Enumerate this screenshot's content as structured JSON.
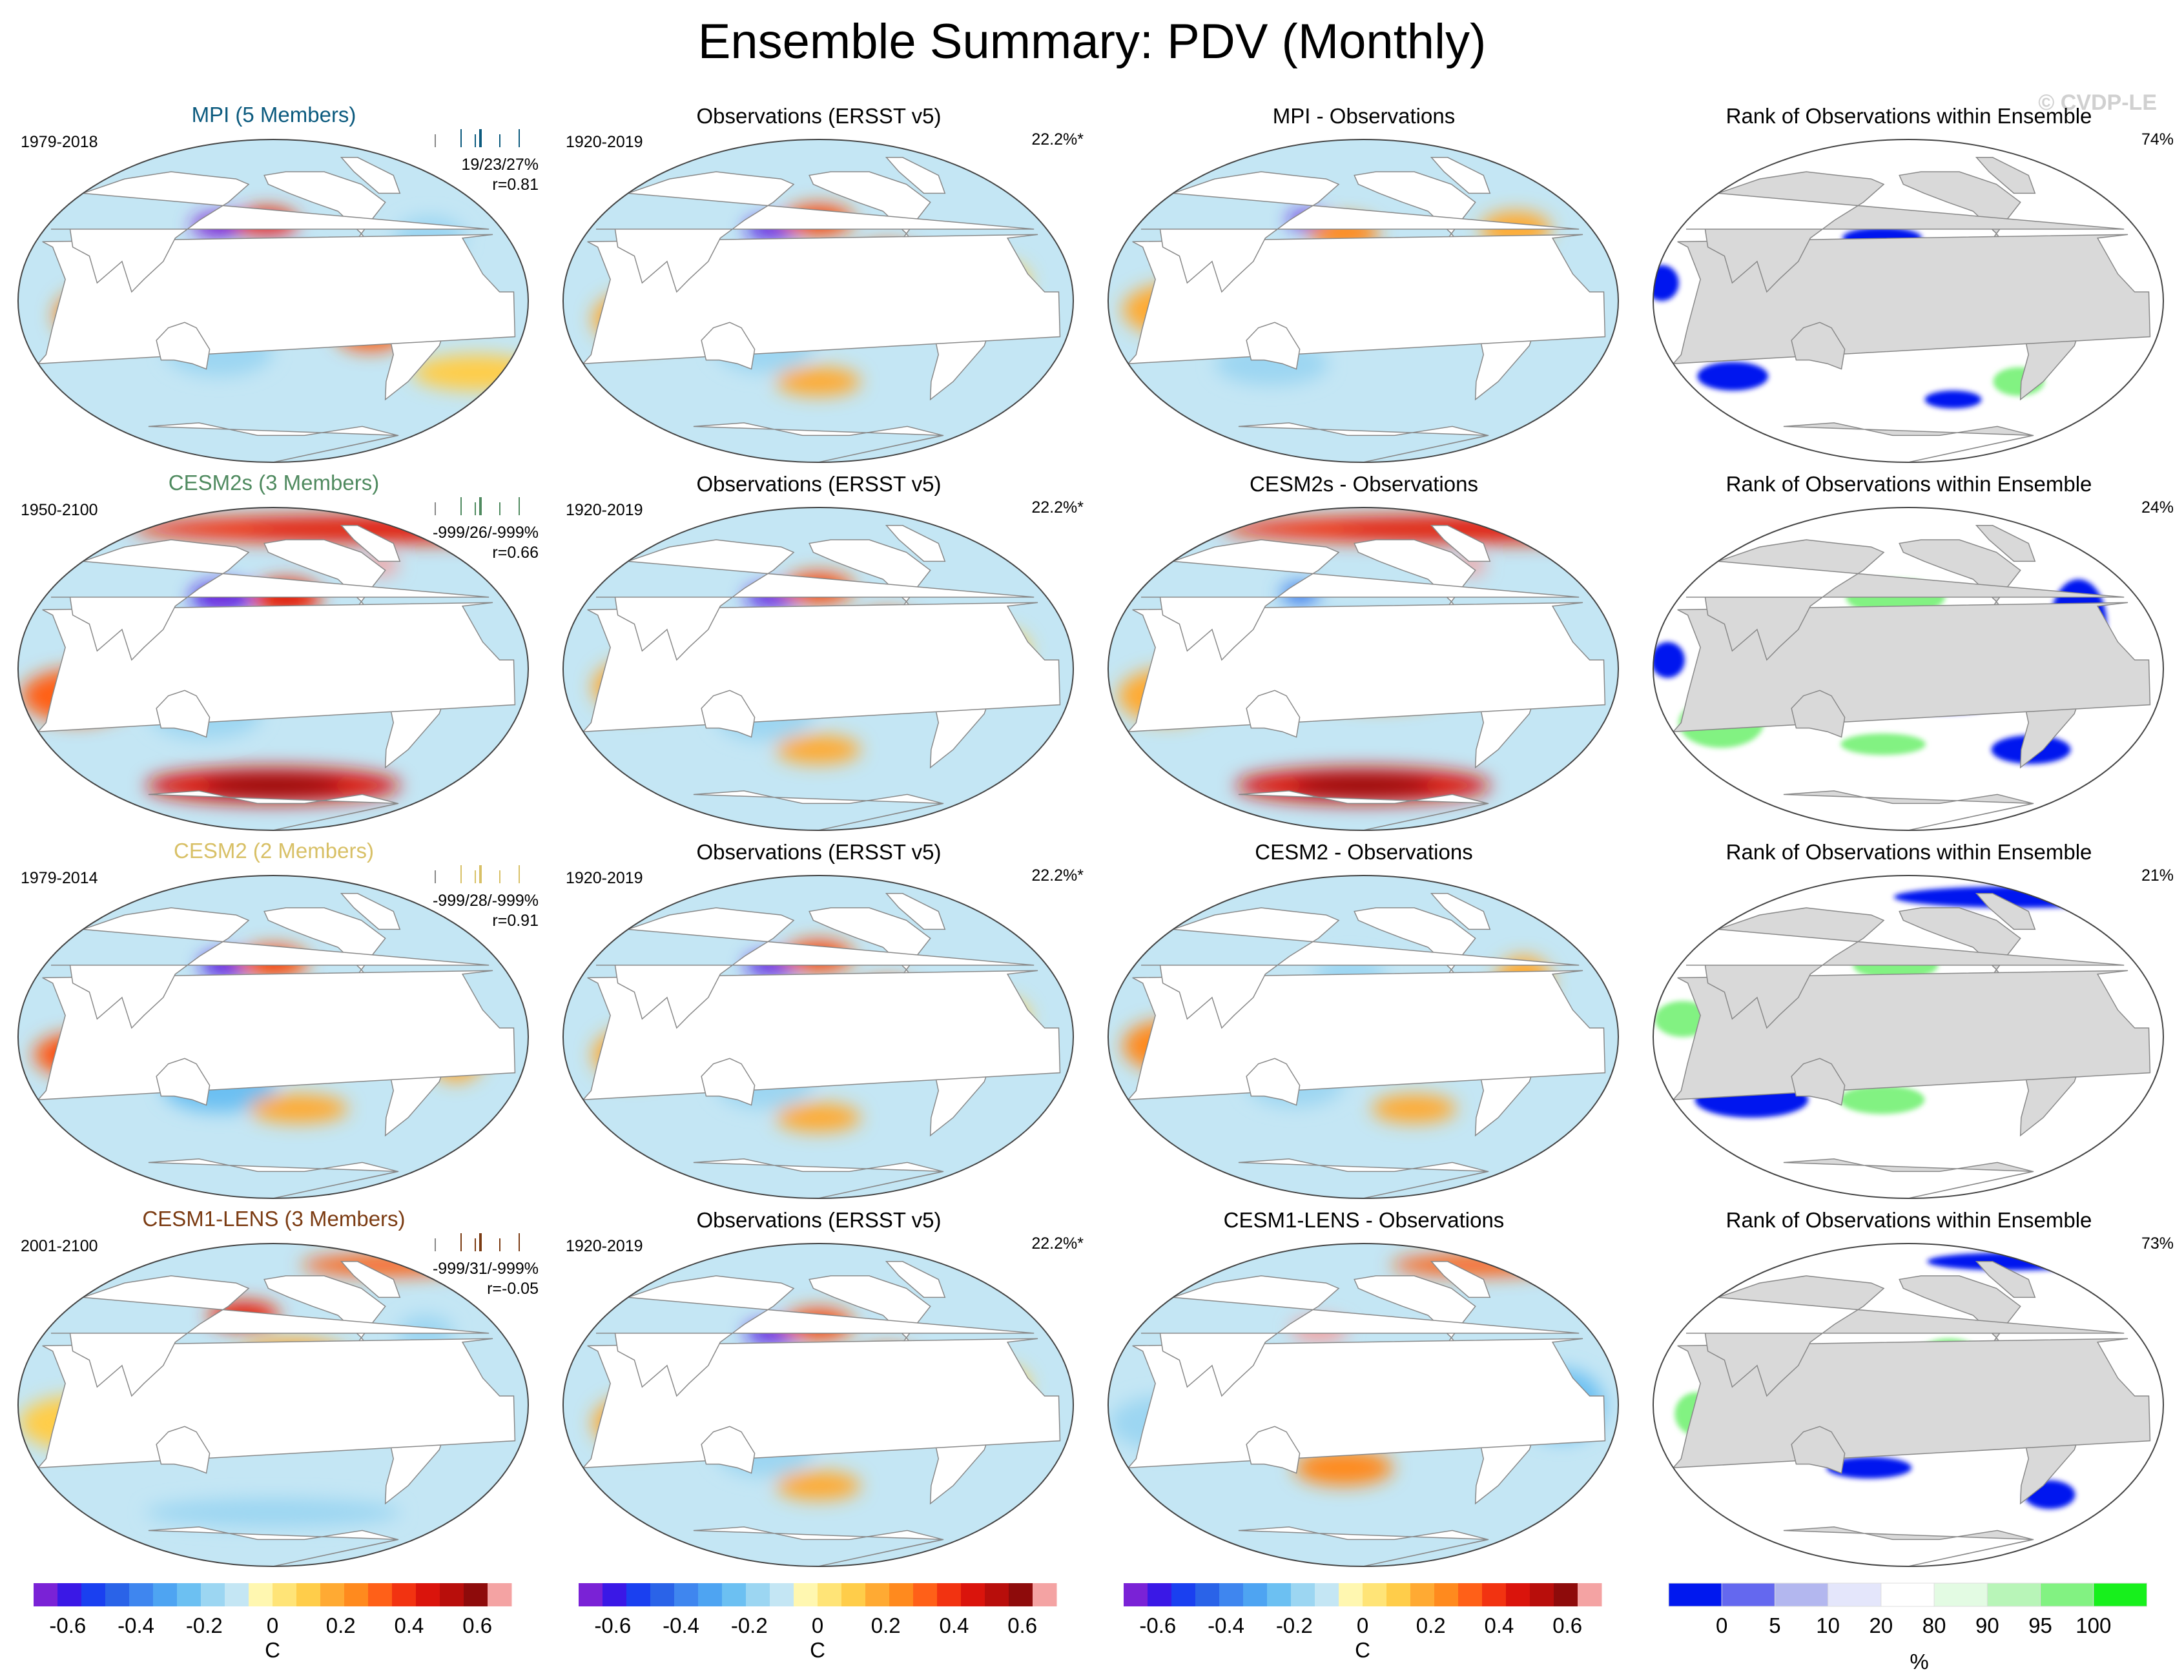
{
  "page": {
    "title": "Ensemble Summary: PDV (Monthly)",
    "watermark": "© CVDP-LE"
  },
  "colors": {
    "model_titles": {
      "MPI": "#0b5a7e",
      "CESM2s": "#4f8a5f",
      "CESM2": "#d8c066",
      "CESM1-LENS": "#7b3b12"
    },
    "diverging_scale": [
      "#7a22d6",
      "#3a18e6",
      "#1a40f0",
      "#2a63e8",
      "#3f86ef",
      "#4ea4f2",
      "#6cc0f2",
      "#9cd6f2",
      "#c4e6f4",
      "#fff7b0",
      "#ffe477",
      "#ffcd4a",
      "#ffaa33",
      "#ff8a1e",
      "#ff6018",
      "#f23311",
      "#da140c",
      "#b80e0b",
      "#8e0b0b",
      "#f4a3a3"
    ],
    "rank_scale": [
      "#0018ef",
      "#6468ef",
      "#b3b7ef",
      "#e4e6fb",
      "#ffffff",
      "#e3fbe3",
      "#b8f5b8",
      "#82f282",
      "#17f01c"
    ],
    "land": "#ffffff",
    "land_masked": "#d9d9d9",
    "coast": "#888888"
  },
  "chart_data": [
    {
      "type": "heatmap",
      "title": "MPI (5 Members)",
      "title_color": "MPI",
      "years": "1979-2018",
      "stats": [
        "19/23/27%",
        "r=0.81"
      ],
      "colormap": "diverging",
      "pattern": [
        {
          "lon": 160,
          "lat": 42,
          "v": -0.68,
          "w": 22,
          "h": 7
        },
        {
          "lon": 195,
          "lat": 43,
          "v": 0.4,
          "w": 22,
          "h": 9
        },
        {
          "lon": 200,
          "lat": 25,
          "v": -0.2,
          "w": 30,
          "h": 9
        },
        {
          "lon": 225,
          "lat": 2,
          "v": 0.52,
          "w": 45,
          "h": 8
        },
        {
          "lon": 270,
          "lat": -18,
          "v": 0.3,
          "w": 25,
          "h": 10
        },
        {
          "lon": 160,
          "lat": -28,
          "v": -0.2,
          "w": 38,
          "h": 14
        },
        {
          "lon": 75,
          "lat": -8,
          "v": 0.25,
          "w": 30,
          "h": 15
        },
        {
          "lon": 0,
          "lat": -40,
          "v": 0.12,
          "w": 45,
          "h": 10
        },
        {
          "lon": 320,
          "lat": 35,
          "v": -0.18,
          "w": 25,
          "h": 12
        }
      ]
    },
    {
      "type": "heatmap",
      "title": "Observations (ERSST v5)",
      "years": "1920-2019",
      "pct": "22.2%*",
      "colormap": "diverging",
      "pattern": [
        {
          "lon": 165,
          "lat": 40,
          "v": -0.62,
          "w": 20,
          "h": 6
        },
        {
          "lon": 200,
          "lat": 45,
          "v": 0.35,
          "w": 25,
          "h": 9
        },
        {
          "lon": 225,
          "lat": 5,
          "v": 0.5,
          "w": 45,
          "h": 10
        },
        {
          "lon": 250,
          "lat": 22,
          "v": 0.32,
          "w": 25,
          "h": 10
        },
        {
          "lon": 160,
          "lat": -25,
          "v": -0.2,
          "w": 35,
          "h": 15
        },
        {
          "lon": 70,
          "lat": -10,
          "v": 0.2,
          "w": 30,
          "h": 15
        },
        {
          "lon": 200,
          "lat": -45,
          "v": 0.22,
          "w": 30,
          "h": 8
        },
        {
          "lon": 330,
          "lat": 10,
          "v": 0.14,
          "w": 20,
          "h": 12
        }
      ]
    },
    {
      "type": "heatmap",
      "title": "MPI - Observations",
      "colormap": "diverging",
      "pattern": [
        {
          "lon": 155,
          "lat": 45,
          "v": -0.6,
          "w": 14,
          "h": 5
        },
        {
          "lon": 185,
          "lat": 38,
          "v": 0.24,
          "w": 25,
          "h": 9
        },
        {
          "lon": 235,
          "lat": -5,
          "v": 0.3,
          "w": 20,
          "h": 7
        },
        {
          "lon": 200,
          "lat": 8,
          "v": -0.15,
          "w": 35,
          "h": 12
        },
        {
          "lon": 70,
          "lat": -5,
          "v": 0.16,
          "w": 40,
          "h": 15
        },
        {
          "lon": 320,
          "lat": 40,
          "v": 0.18,
          "w": 25,
          "h": 10
        },
        {
          "lon": 130,
          "lat": -35,
          "v": -0.15,
          "w": 40,
          "h": 12
        }
      ]
    },
    {
      "type": "heatmap",
      "title": "Rank of Observations within Ensemble",
      "pct": "74%",
      "colormap": "rank",
      "pattern": [
        {
          "lon": 180,
          "lat": 35,
          "v": 0,
          "w": 28,
          "h": 6
        },
        {
          "lon": 205,
          "lat": 8,
          "v": 90,
          "w": 30,
          "h": 6
        },
        {
          "lon": 60,
          "lat": -42,
          "v": 0,
          "w": 25,
          "h": 8
        },
        {
          "lon": 330,
          "lat": 20,
          "v": 100,
          "w": 12,
          "h": 10
        },
        {
          "lon": 240,
          "lat": -55,
          "v": 0,
          "w": 20,
          "h": 5
        },
        {
          "lon": 25,
          "lat": 10,
          "v": 0,
          "w": 12,
          "h": 10
        },
        {
          "lon": 290,
          "lat": -45,
          "v": 100,
          "w": 18,
          "h": 8
        }
      ]
    },
    {
      "type": "heatmap",
      "title": "CESM2s (3 Members)",
      "title_color": "CESM2s",
      "years": "1950-2100",
      "stats": [
        "-999/26/-999%",
        "r=0.66"
      ],
      "colormap": "diverging",
      "pattern": [
        {
          "lon": 160,
          "lat": 40,
          "v": -0.65,
          "w": 22,
          "h": 8
        },
        {
          "lon": 210,
          "lat": 40,
          "v": 0.4,
          "w": 25,
          "h": 10
        },
        {
          "lon": 215,
          "lat": 0,
          "v": 0.5,
          "w": 70,
          "h": 9
        },
        {
          "lon": 300,
          "lat": 58,
          "v": 0.7,
          "w": 12,
          "h": 6
        },
        {
          "lon": 0,
          "lat": 78,
          "v": 0.4,
          "w": 180,
          "h": 8
        },
        {
          "lon": 200,
          "lat": -65,
          "v": 0.5,
          "w": 90,
          "h": 10
        },
        {
          "lon": 150,
          "lat": -25,
          "v": -0.22,
          "w": 40,
          "h": 14
        },
        {
          "lon": 60,
          "lat": -15,
          "v": 0.3,
          "w": 40,
          "h": 15
        }
      ]
    },
    {
      "type": "heatmap",
      "title": "Observations (ERSST v5)",
      "years": "1920-2019",
      "pct": "22.2%*",
      "colormap": "diverging",
      "pattern": [
        {
          "lon": 165,
          "lat": 40,
          "v": -0.62,
          "w": 20,
          "h": 6
        },
        {
          "lon": 200,
          "lat": 45,
          "v": 0.35,
          "w": 25,
          "h": 9
        },
        {
          "lon": 225,
          "lat": 5,
          "v": 0.5,
          "w": 45,
          "h": 10
        },
        {
          "lon": 250,
          "lat": 22,
          "v": 0.32,
          "w": 25,
          "h": 10
        },
        {
          "lon": 160,
          "lat": -25,
          "v": -0.2,
          "w": 35,
          "h": 15
        },
        {
          "lon": 70,
          "lat": -10,
          "v": 0.2,
          "w": 30,
          "h": 15
        },
        {
          "lon": 200,
          "lat": -45,
          "v": 0.22,
          "w": 30,
          "h": 8
        },
        {
          "lon": 330,
          "lat": 10,
          "v": 0.14,
          "w": 20,
          "h": 12
        }
      ]
    },
    {
      "type": "heatmap",
      "title": "CESM2s - Observations",
      "colormap": "diverging",
      "pattern": [
        {
          "lon": 150,
          "lat": 42,
          "v": -0.4,
          "w": 14,
          "h": 6
        },
        {
          "lon": 300,
          "lat": 58,
          "v": 0.7,
          "w": 10,
          "h": 6
        },
        {
          "lon": 0,
          "lat": 78,
          "v": 0.4,
          "w": 180,
          "h": 8
        },
        {
          "lon": 210,
          "lat": -12,
          "v": 0.28,
          "w": 50,
          "h": 9
        },
        {
          "lon": 200,
          "lat": -65,
          "v": 0.48,
          "w": 90,
          "h": 10
        },
        {
          "lon": 180,
          "lat": 20,
          "v": -0.2,
          "w": 40,
          "h": 10
        },
        {
          "lon": 60,
          "lat": -15,
          "v": 0.18,
          "w": 35,
          "h": 15
        }
      ]
    },
    {
      "type": "heatmap",
      "title": "Rank of Observations within Ensemble",
      "pct": "24%",
      "colormap": "rank",
      "pattern": [
        {
          "lon": 225,
          "lat": -12,
          "v": 0,
          "w": 55,
          "h": 13
        },
        {
          "lon": 325,
          "lat": 25,
          "v": 0,
          "w": 20,
          "h": 25
        },
        {
          "lon": 190,
          "lat": 40,
          "v": 100,
          "w": 35,
          "h": 10
        },
        {
          "lon": 60,
          "lat": -30,
          "v": 100,
          "w": 30,
          "h": 14
        },
        {
          "lon": 30,
          "lat": 5,
          "v": 0,
          "w": 12,
          "h": 10
        },
        {
          "lon": 300,
          "lat": -45,
          "v": 0,
          "w": 28,
          "h": 8
        },
        {
          "lon": 180,
          "lat": -42,
          "v": 100,
          "w": 30,
          "h": 6
        }
      ]
    },
    {
      "type": "heatmap",
      "title": "CESM2 (2 Members)",
      "title_color": "CESM2",
      "years": "1979-2014",
      "stats": [
        "-999/28/-999%",
        "r=0.91"
      ],
      "colormap": "diverging",
      "pattern": [
        {
          "lon": 165,
          "lat": 40,
          "v": -0.64,
          "w": 20,
          "h": 7
        },
        {
          "lon": 200,
          "lat": 42,
          "v": 0.35,
          "w": 25,
          "h": 9
        },
        {
          "lon": 215,
          "lat": 0,
          "v": 0.78,
          "w": 55,
          "h": 7
        },
        {
          "lon": 60,
          "lat": -10,
          "v": 0.32,
          "w": 30,
          "h": 12
        },
        {
          "lon": 160,
          "lat": -28,
          "v": -0.28,
          "w": 40,
          "h": 14
        },
        {
          "lon": 220,
          "lat": -40,
          "v": 0.2,
          "w": 35,
          "h": 8
        },
        {
          "lon": 330,
          "lat": -10,
          "v": 0.22,
          "w": 20,
          "h": 15
        }
      ]
    },
    {
      "type": "heatmap",
      "title": "Observations (ERSST v5)",
      "years": "1920-2019",
      "pct": "22.2%*",
      "colormap": "diverging",
      "pattern": [
        {
          "lon": 165,
          "lat": 40,
          "v": -0.62,
          "w": 20,
          "h": 6
        },
        {
          "lon": 200,
          "lat": 45,
          "v": 0.35,
          "w": 25,
          "h": 9
        },
        {
          "lon": 225,
          "lat": 5,
          "v": 0.5,
          "w": 45,
          "h": 10
        },
        {
          "lon": 250,
          "lat": 22,
          "v": 0.32,
          "w": 25,
          "h": 10
        },
        {
          "lon": 160,
          "lat": -25,
          "v": -0.2,
          "w": 35,
          "h": 15
        },
        {
          "lon": 70,
          "lat": -10,
          "v": 0.2,
          "w": 30,
          "h": 15
        },
        {
          "lon": 200,
          "lat": -45,
          "v": 0.22,
          "w": 30,
          "h": 8
        },
        {
          "lon": 330,
          "lat": 10,
          "v": 0.14,
          "w": 20,
          "h": 12
        }
      ]
    },
    {
      "type": "heatmap",
      "title": "CESM2 - Observations",
      "colormap": "diverging",
      "pattern": [
        {
          "lon": 210,
          "lat": 0,
          "v": 0.4,
          "w": 45,
          "h": 6
        },
        {
          "lon": 190,
          "lat": 35,
          "v": -0.2,
          "w": 25,
          "h": 10
        },
        {
          "lon": 60,
          "lat": -5,
          "v": 0.28,
          "w": 30,
          "h": 14
        },
        {
          "lon": 150,
          "lat": -25,
          "v": -0.18,
          "w": 35,
          "h": 14
        },
        {
          "lon": 320,
          "lat": 30,
          "v": 0.2,
          "w": 20,
          "h": 15
        },
        {
          "lon": 240,
          "lat": -40,
          "v": 0.15,
          "w": 30,
          "h": 8
        }
      ]
    },
    {
      "type": "heatmap",
      "title": "Rank of Observations within Ensemble",
      "pct": "21%",
      "colormap": "rank",
      "pattern": [
        {
          "lon": 215,
          "lat": 2,
          "v": 0,
          "w": 60,
          "h": 11
        },
        {
          "lon": 190,
          "lat": 40,
          "v": 100,
          "w": 30,
          "h": 8
        },
        {
          "lon": 80,
          "lat": -35,
          "v": 0,
          "w": 40,
          "h": 10
        },
        {
          "lon": 320,
          "lat": 0,
          "v": 0,
          "w": 18,
          "h": 20
        },
        {
          "lon": 180,
          "lat": -35,
          "v": 100,
          "w": 30,
          "h": 8
        },
        {
          "lon": 0,
          "lat": 78,
          "v": 0,
          "w": 90,
          "h": 6
        },
        {
          "lon": 40,
          "lat": 10,
          "v": 100,
          "w": 20,
          "h": 10
        }
      ]
    },
    {
      "type": "heatmap",
      "title": "CESM1-LENS (3 Members)",
      "title_color": "CESM1-LENS",
      "years": "2001-2100",
      "stats": [
        "-999/31/-999%",
        "r=-0.05"
      ],
      "colormap": "diverging",
      "pattern": [
        {
          "lon": 175,
          "lat": 50,
          "v": 0.4,
          "w": 25,
          "h": 8
        },
        {
          "lon": 215,
          "lat": 25,
          "v": 0.16,
          "w": 40,
          "h": 12
        },
        {
          "lon": 200,
          "lat": -5,
          "v": -0.18,
          "w": 50,
          "h": 12
        },
        {
          "lon": 60,
          "lat": -10,
          "v": 0.12,
          "w": 40,
          "h": 15
        },
        {
          "lon": 200,
          "lat": -60,
          "v": -0.22,
          "w": 90,
          "h": 8
        },
        {
          "lon": 320,
          "lat": 40,
          "v": -0.22,
          "w": 20,
          "h": 10
        },
        {
          "lon": 0,
          "lat": 78,
          "v": 0.3,
          "w": 60,
          "h": 6
        }
      ]
    },
    {
      "type": "heatmap",
      "title": "Observations (ERSST v5)",
      "years": "1920-2019",
      "pct": "22.2%*",
      "colormap": "diverging",
      "pattern": [
        {
          "lon": 165,
          "lat": 40,
          "v": -0.62,
          "w": 20,
          "h": 6
        },
        {
          "lon": 200,
          "lat": 45,
          "v": 0.35,
          "w": 25,
          "h": 9
        },
        {
          "lon": 225,
          "lat": 5,
          "v": 0.5,
          "w": 45,
          "h": 10
        },
        {
          "lon": 250,
          "lat": 22,
          "v": 0.32,
          "w": 25,
          "h": 10
        },
        {
          "lon": 160,
          "lat": -25,
          "v": -0.2,
          "w": 35,
          "h": 15
        },
        {
          "lon": 70,
          "lat": -10,
          "v": 0.2,
          "w": 30,
          "h": 15
        },
        {
          "lon": 200,
          "lat": -45,
          "v": 0.22,
          "w": 30,
          "h": 8
        },
        {
          "lon": 330,
          "lat": 10,
          "v": 0.14,
          "w": 20,
          "h": 12
        }
      ]
    },
    {
      "type": "heatmap",
      "title": "CESM1-LENS - Observations",
      "colormap": "diverging",
      "pattern": [
        {
          "lon": 165,
          "lat": 42,
          "v": 0.72,
          "w": 20,
          "h": 7
        },
        {
          "lon": 215,
          "lat": 0,
          "v": -0.4,
          "w": 55,
          "h": 10
        },
        {
          "lon": 185,
          "lat": -35,
          "v": 0.28,
          "w": 35,
          "h": 10
        },
        {
          "lon": 60,
          "lat": -10,
          "v": -0.2,
          "w": 40,
          "h": 15
        },
        {
          "lon": 340,
          "lat": 0,
          "v": -0.28,
          "w": 30,
          "h": 20
        },
        {
          "lon": 0,
          "lat": 78,
          "v": 0.3,
          "w": 60,
          "h": 6
        }
      ]
    },
    {
      "type": "heatmap",
      "title": "Rank of Observations within Ensemble",
      "pct": "73%",
      "colormap": "rank",
      "pattern": [
        {
          "lon": 230,
          "lat": 25,
          "v": 100,
          "w": 25,
          "h": 12
        },
        {
          "lon": 205,
          "lat": -5,
          "v": 0,
          "w": 35,
          "h": 8
        },
        {
          "lon": 50,
          "lat": -5,
          "v": 100,
          "w": 15,
          "h": 12
        },
        {
          "lon": 170,
          "lat": -35,
          "v": 0,
          "w": 30,
          "h": 6
        },
        {
          "lon": 320,
          "lat": -50,
          "v": 0,
          "w": 18,
          "h": 8
        },
        {
          "lon": 0,
          "lat": 80,
          "v": 0,
          "w": 60,
          "h": 5
        }
      ]
    }
  ],
  "colorbars": [
    {
      "labels": [
        "-0.6",
        "-0.4",
        "-0.2",
        "0",
        "0.2",
        "0.4",
        "0.6"
      ],
      "unit": "C"
    },
    {
      "labels": [
        "-0.6",
        "-0.4",
        "-0.2",
        "0",
        "0.2",
        "0.4",
        "0.6"
      ],
      "unit": "C"
    },
    {
      "labels": [
        "-0.6",
        "-0.4",
        "-0.2",
        "0",
        "0.2",
        "0.4",
        "0.6"
      ],
      "unit": "C"
    },
    {
      "labels": [
        "0",
        "5",
        "10",
        "20",
        "80",
        "90",
        "95",
        "100"
      ],
      "unit": "%"
    }
  ]
}
